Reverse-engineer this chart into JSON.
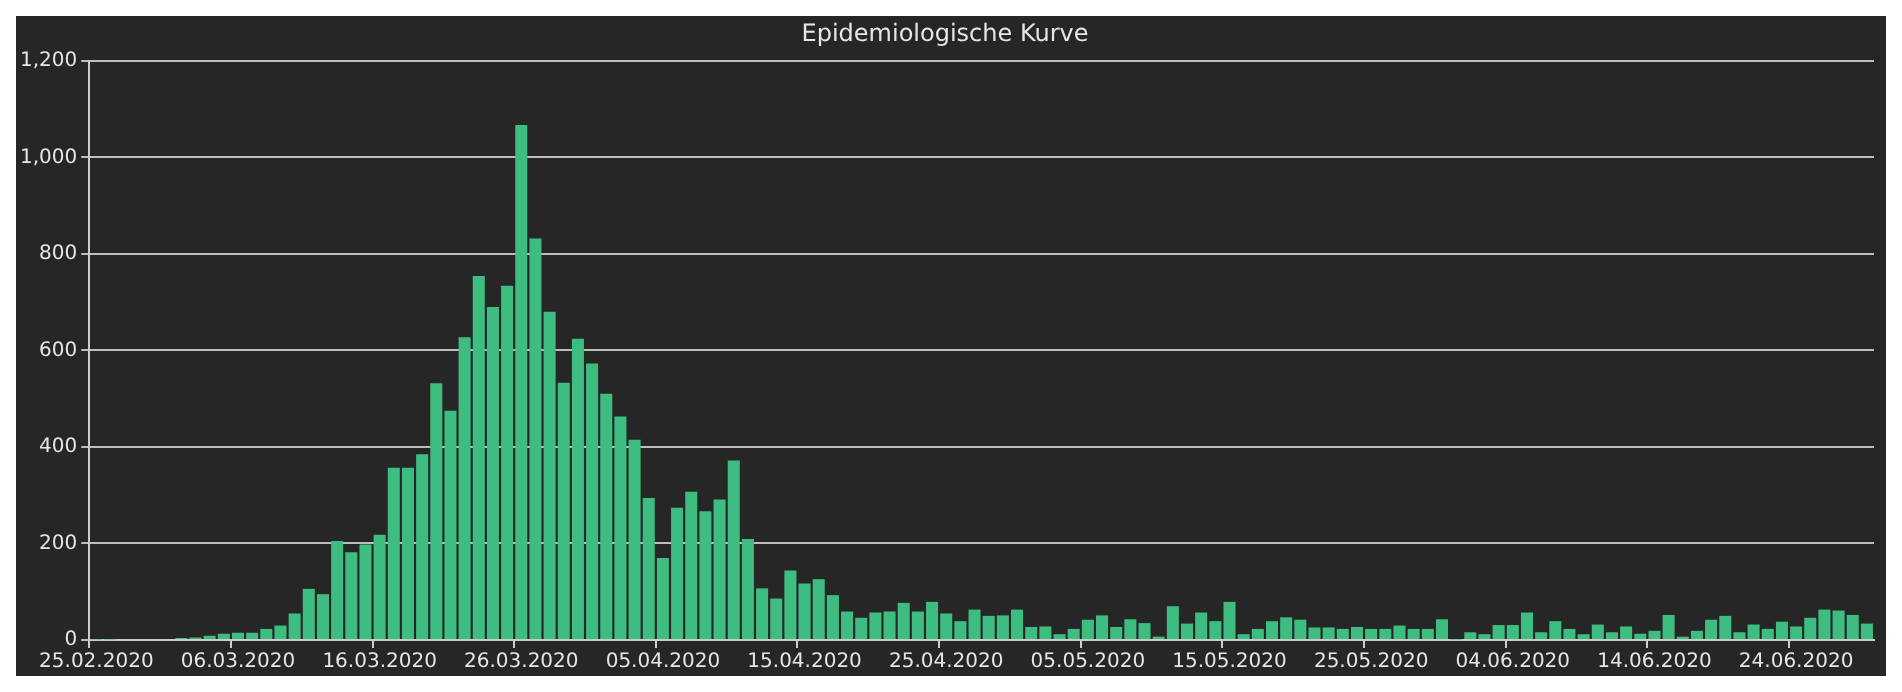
{
  "chart_data": {
    "type": "bar",
    "title": "Epidemiologische Kurve",
    "categories": [
      "25.02.2020",
      null,
      null,
      null,
      null,
      null,
      null,
      null,
      null,
      null,
      "06.03.2020",
      null,
      null,
      null,
      null,
      null,
      null,
      null,
      null,
      null,
      "16.03.2020",
      null,
      null,
      null,
      null,
      null,
      null,
      null,
      null,
      null,
      "26.03.2020",
      null,
      null,
      null,
      null,
      null,
      null,
      null,
      null,
      null,
      "05.04.2020",
      null,
      null,
      null,
      null,
      null,
      null,
      null,
      null,
      null,
      "15.04.2020",
      null,
      null,
      null,
      null,
      null,
      null,
      null,
      null,
      null,
      "25.04.2020",
      null,
      null,
      null,
      null,
      null,
      null,
      null,
      null,
      null,
      "05.05.2020",
      null,
      null,
      null,
      null,
      null,
      null,
      null,
      null,
      null,
      "15.05.2020",
      null,
      null,
      null,
      null,
      null,
      null,
      null,
      null,
      null,
      "25.05.2020",
      null,
      null,
      null,
      null,
      null,
      null,
      null,
      null,
      null,
      "04.06.2020",
      null,
      null,
      null,
      null,
      null,
      null,
      null,
      null,
      null,
      "14.06.2020",
      null,
      null,
      null,
      null,
      null,
      null,
      null,
      null,
      null,
      "24.06.2020",
      null,
      null,
      null,
      null,
      null
    ],
    "values": [
      1,
      1,
      0,
      null,
      null,
      null,
      4,
      5,
      9,
      13,
      15,
      15,
      23,
      30,
      55,
      106,
      95,
      205,
      182,
      198,
      218,
      357,
      357,
      385,
      532,
      475,
      627,
      754,
      690,
      734,
      1067,
      832,
      680,
      533,
      624,
      573,
      510,
      463,
      415,
      294,
      170,
      274,
      307,
      267,
      291,
      372,
      209,
      107,
      86,
      144,
      117,
      126,
      93,
      59,
      46,
      57,
      59,
      77,
      59,
      79,
      55,
      39,
      63,
      50,
      51,
      63,
      27,
      28,
      12,
      23,
      42,
      51,
      27,
      43,
      35,
      7,
      70,
      34,
      57,
      39,
      79,
      12,
      23,
      39,
      47,
      42,
      26,
      26,
      23,
      27,
      23,
      23,
      30,
      23,
      23,
      43,
      1,
      16,
      12,
      31,
      31,
      57,
      16,
      39,
      23,
      12,
      32,
      16,
      28,
      13,
      19,
      52,
      7,
      19,
      42,
      50,
      16,
      32,
      23,
      38,
      28,
      46,
      63,
      61,
      52,
      34
    ],
    "color": "#3dbd7f",
    "ylim": [
      0,
      1200
    ],
    "yticks": [
      0,
      200,
      400,
      600,
      800,
      {
        "value": 1000,
        "label": "1,000"
      },
      {
        "value": 1200,
        "label": "1,200"
      }
    ],
    "grid": "y",
    "legend": false
  }
}
